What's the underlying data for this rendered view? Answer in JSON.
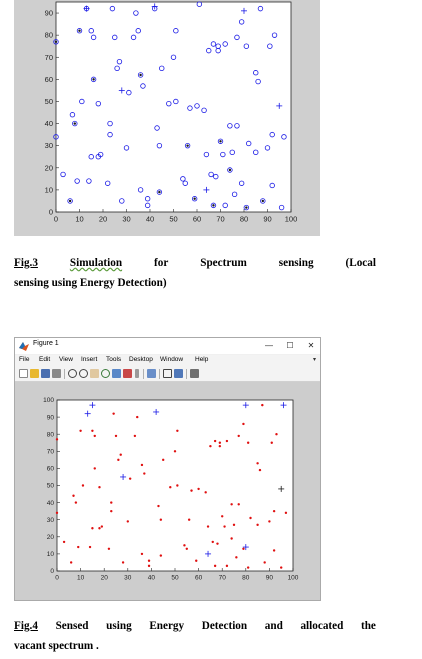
{
  "figure3": {
    "caption_label": "Fig.3",
    "caption_line1_words": [
      "Simulation",
      "for",
      "Spectrum",
      "sensing",
      "(Local"
    ],
    "caption_line2": "sensing using Energy Detection)",
    "chart_data": {
      "type": "scatter",
      "xlim": [
        0,
        100
      ],
      "ylim": [
        0,
        95
      ],
      "xticks": [
        "0",
        "10",
        "20",
        "30",
        "40",
        "50",
        "60",
        "70",
        "80",
        "90",
        "100"
      ],
      "yticks": [
        "0",
        "10",
        "20",
        "30",
        "40",
        "50",
        "60",
        "70",
        "80",
        "90"
      ],
      "series": [
        {
          "marker": "o",
          "color": "#1a1ae6",
          "points": [
            [
              0,
              34
            ],
            [
              0,
              77
            ],
            [
              3,
              17
            ],
            [
              6,
              5
            ],
            [
              7,
              44
            ],
            [
              8,
              40
            ],
            [
              9,
              14
            ],
            [
              10,
              82
            ],
            [
              11,
              50
            ],
            [
              13,
              92
            ],
            [
              14,
              14
            ],
            [
              15,
              25
            ],
            [
              15,
              82
            ],
            [
              16,
              60
            ],
            [
              16,
              79
            ],
            [
              18,
              49
            ],
            [
              18,
              25
            ],
            [
              19,
              26
            ],
            [
              22,
              13
            ],
            [
              23,
              40
            ],
            [
              23,
              35
            ],
            [
              24,
              92
            ],
            [
              25,
              79
            ],
            [
              26,
              65
            ],
            [
              27,
              68
            ],
            [
              28,
              5
            ],
            [
              30,
              29
            ],
            [
              31,
              54
            ],
            [
              33,
              79
            ],
            [
              34,
              90
            ],
            [
              35,
              82
            ],
            [
              36,
              10
            ],
            [
              36,
              62
            ],
            [
              37,
              57
            ],
            [
              39,
              6
            ],
            [
              39,
              3
            ],
            [
              42,
              92
            ],
            [
              43,
              38
            ],
            [
              44,
              30
            ],
            [
              44,
              9
            ],
            [
              45,
              65
            ],
            [
              48,
              49
            ],
            [
              50,
              70
            ],
            [
              51,
              50
            ],
            [
              51,
              82
            ],
            [
              54,
              15
            ],
            [
              55,
              13
            ],
            [
              56,
              30
            ],
            [
              57,
              47
            ],
            [
              59,
              6
            ],
            [
              60,
              48
            ],
            [
              61,
              94
            ],
            [
              63,
              46
            ],
            [
              64,
              26
            ],
            [
              65,
              73
            ],
            [
              66,
              17
            ],
            [
              67,
              3
            ],
            [
              67,
              76
            ],
            [
              68,
              16
            ],
            [
              69,
              75
            ],
            [
              69,
              73
            ],
            [
              70,
              32
            ],
            [
              71,
              26
            ],
            [
              72,
              3
            ],
            [
              72,
              76
            ],
            [
              74,
              39
            ],
            [
              74,
              19
            ],
            [
              75,
              27
            ],
            [
              76,
              8
            ],
            [
              77,
              39
            ],
            [
              77,
              79
            ],
            [
              79,
              13
            ],
            [
              79,
              86
            ],
            [
              81,
              2
            ],
            [
              81,
              75
            ],
            [
              82,
              31
            ],
            [
              85,
              63
            ],
            [
              85,
              27
            ],
            [
              86,
              59
            ],
            [
              87,
              92
            ],
            [
              88,
              5
            ],
            [
              90,
              29
            ],
            [
              91,
              75
            ],
            [
              92,
              12
            ],
            [
              92,
              35
            ],
            [
              93,
              80
            ],
            [
              96,
              2
            ],
            [
              97,
              34
            ]
          ]
        },
        {
          "marker": "dot",
          "color": "#1a1a1a",
          "points": [
            [
              0,
              77
            ],
            [
              6,
              5
            ],
            [
              8,
              40
            ],
            [
              10,
              82
            ],
            [
              16,
              60
            ],
            [
              36,
              62
            ],
            [
              44,
              9
            ],
            [
              56,
              30
            ],
            [
              59,
              6
            ],
            [
              67,
              3
            ],
            [
              70,
              32
            ],
            [
              74,
              19
            ],
            [
              81,
              2
            ],
            [
              88,
              5
            ]
          ]
        },
        {
          "marker": "+",
          "color": "#1a1ae6",
          "points": [
            [
              13,
              92
            ],
            [
              28,
              55
            ],
            [
              42,
              93
            ],
            [
              64,
              10
            ],
            [
              80,
              91
            ],
            [
              95,
              48
            ]
          ]
        }
      ]
    }
  },
  "figure4": {
    "window_title": "Figure 1",
    "window_buttons": [
      "—",
      "☐",
      "✕"
    ],
    "menus": [
      "File",
      "Edit",
      "View",
      "Insert",
      "Tools",
      "Desktop",
      "Window",
      "Help"
    ],
    "menu_arrow": "▾",
    "toolbar_icons": [
      "new-figure-icon",
      "open-file-icon",
      "save-icon",
      "print-icon",
      "zoom-in-icon",
      "zoom-out-icon",
      "pan-icon",
      "rotate-icon",
      "data-cursor-icon",
      "brush-icon",
      "link-icon",
      "colorbar-icon",
      "legend-icon",
      "hide-plot-tools-icon",
      "show-plot-tools-icon"
    ],
    "caption_words": [
      "Fig.4",
      "Sensed",
      "using",
      "Energy",
      "Detection",
      "and",
      "allocated",
      "the"
    ],
    "caption_line2": "vacant spectrum .",
    "chart_data": {
      "type": "scatter",
      "xlim": [
        0,
        100
      ],
      "ylim": [
        0,
        100
      ],
      "xticks": [
        "0",
        "10",
        "20",
        "30",
        "40",
        "50",
        "60",
        "70",
        "80",
        "90",
        "100"
      ],
      "yticks": [
        "0",
        "10",
        "20",
        "30",
        "40",
        "50",
        "60",
        "70",
        "80",
        "90",
        "100"
      ],
      "series": [
        {
          "marker": "dot",
          "color": "#e01010",
          "points": [
            [
              0,
              34
            ],
            [
              0,
              77
            ],
            [
              3,
              17
            ],
            [
              6,
              5
            ],
            [
              7,
              44
            ],
            [
              8,
              40
            ],
            [
              9,
              14
            ],
            [
              10,
              82
            ],
            [
              11,
              50
            ],
            [
              14,
              14
            ],
            [
              15,
              25
            ],
            [
              15,
              82
            ],
            [
              16,
              60
            ],
            [
              16,
              79
            ],
            [
              18,
              49
            ],
            [
              18,
              25
            ],
            [
              19,
              26
            ],
            [
              22,
              13
            ],
            [
              23,
              40
            ],
            [
              23,
              35
            ],
            [
              24,
              92
            ],
            [
              25,
              79
            ],
            [
              26,
              65
            ],
            [
              27,
              68
            ],
            [
              28,
              5
            ],
            [
              30,
              29
            ],
            [
              31,
              54
            ],
            [
              33,
              79
            ],
            [
              34,
              90
            ],
            [
              36,
              10
            ],
            [
              36,
              62
            ],
            [
              37,
              57
            ],
            [
              39,
              6
            ],
            [
              39,
              3
            ],
            [
              43,
              38
            ],
            [
              44,
              30
            ],
            [
              44,
              9
            ],
            [
              45,
              65
            ],
            [
              48,
              49
            ],
            [
              50,
              70
            ],
            [
              51,
              50
            ],
            [
              51,
              82
            ],
            [
              54,
              15
            ],
            [
              55,
              13
            ],
            [
              56,
              30
            ],
            [
              57,
              47
            ],
            [
              59,
              6
            ],
            [
              60,
              48
            ],
            [
              63,
              46
            ],
            [
              64,
              26
            ],
            [
              65,
              73
            ],
            [
              66,
              17
            ],
            [
              67,
              3
            ],
            [
              67,
              76
            ],
            [
              68,
              16
            ],
            [
              69,
              75
            ],
            [
              69,
              73
            ],
            [
              70,
              32
            ],
            [
              71,
              26
            ],
            [
              72,
              3
            ],
            [
              72,
              76
            ],
            [
              74,
              39
            ],
            [
              74,
              19
            ],
            [
              75,
              27
            ],
            [
              76,
              8
            ],
            [
              77,
              39
            ],
            [
              77,
              79
            ],
            [
              79,
              13
            ],
            [
              79,
              86
            ],
            [
              81,
              2
            ],
            [
              81,
              75
            ],
            [
              82,
              31
            ],
            [
              85,
              63
            ],
            [
              85,
              27
            ],
            [
              86,
              59
            ],
            [
              87,
              97
            ],
            [
              88,
              5
            ],
            [
              90,
              29
            ],
            [
              91,
              75
            ],
            [
              92,
              12
            ],
            [
              92,
              35
            ],
            [
              93,
              80
            ],
            [
              95,
              2
            ],
            [
              97,
              34
            ]
          ]
        },
        {
          "marker": "+",
          "color": "#1a1ae6",
          "points": [
            [
              13,
              92
            ],
            [
              15,
              97
            ],
            [
              28,
              55
            ],
            [
              42,
              93
            ],
            [
              64,
              10
            ],
            [
              80,
              97
            ],
            [
              80,
              14
            ],
            [
              96,
              97
            ]
          ]
        },
        {
          "marker": "+",
          "color": "#1a1a1a",
          "points": [
            [
              95,
              48
            ]
          ]
        }
      ]
    }
  }
}
